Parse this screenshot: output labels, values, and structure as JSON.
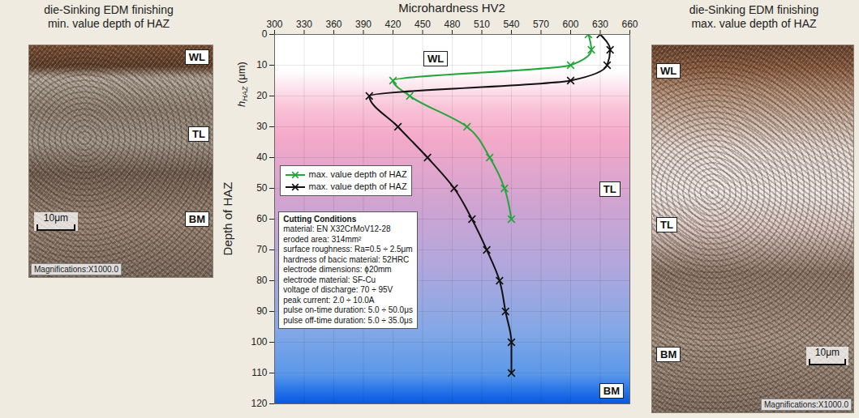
{
  "chart_data": {
    "type": "line",
    "x_label": "Microhardness HV2",
    "y_label": "Depth of HAZ",
    "y_sublabel": "hHAZ (μm)",
    "xlim": [
      300,
      660
    ],
    "xticks": [
      300,
      330,
      360,
      390,
      420,
      450,
      480,
      510,
      540,
      570,
      600,
      630,
      660
    ],
    "ylim": [
      0,
      120
    ],
    "yticks": [
      0,
      10,
      20,
      30,
      40,
      50,
      60,
      70,
      80,
      90,
      100,
      110,
      120
    ],
    "grid": true,
    "legend": "left",
    "series": [
      {
        "name": "max. value depth of HAZ",
        "color": "#22a63a",
        "marker": "x",
        "line_style": "solid",
        "x": [
          618,
          621,
          600,
          420,
          437,
          495,
          518,
          533,
          540
        ],
        "values": [
          0,
          5,
          10,
          15,
          20,
          30,
          40,
          50,
          60
        ]
      },
      {
        "name": "max. value depth of HAZ",
        "color": "#111111",
        "marker": "x",
        "line_style": "solid",
        "x": [
          630,
          640,
          637,
          600,
          396,
          425,
          455,
          482,
          500,
          515,
          528,
          534,
          540,
          540
        ],
        "values": [
          0,
          5,
          10,
          15,
          20,
          30,
          40,
          50,
          60,
          70,
          80,
          90,
          100,
          110
        ]
      }
    ],
    "annotations": [
      "WL",
      "TL",
      "BM"
    ],
    "conditions": {
      "title": "Cutting Conditions",
      "lines": [
        "material: EN X32CrMoV12-28",
        "eroded area: 314mm²",
        "surface roughness: Ra=0.5 ÷ 2.5μm",
        "hardness of bacic material: 52HRC",
        "electrode dimensions: ϕ20mm",
        "electrode material: SF-Cu",
        "voltage of discharge: 70 ÷ 95V",
        "peak current: 2.0 ÷ 10.0A",
        "pulse on-time duration: 5.0 ÷ 50.0μs",
        "pulse off-time duration: 5.0 ÷ 35.0μs"
      ]
    }
  },
  "images": [
    {
      "title": [
        "die-Sinking EDM finishing",
        "min. value depth of HAZ"
      ],
      "labels": [
        "WL",
        "TL",
        "BM"
      ],
      "scale_bar": "10μm",
      "magnification": "Magnifications:X1000.0"
    },
    {
      "title": [
        "die-Sinking EDM finishing",
        "max. value depth of HAZ"
      ],
      "labels": [
        "WL",
        "TL",
        "BM"
      ],
      "scale_bar": "10μm",
      "magnification": "Magnifications:X1000.0"
    }
  ]
}
